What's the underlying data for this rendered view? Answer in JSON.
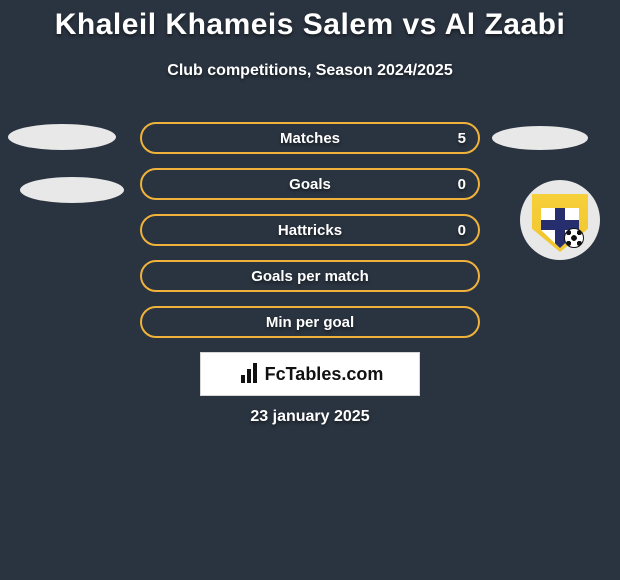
{
  "header": {
    "title": "Khaleil Khameis Salem vs Al Zaabi",
    "subtitle": "Club competitions, Season 2024/2025"
  },
  "stats": {
    "track_border_color": "#f0b23a",
    "background_color": "#2a3440",
    "text_color": "#ffffff",
    "rows": [
      {
        "label": "Matches",
        "right_value": "5"
      },
      {
        "label": "Goals",
        "right_value": "0"
      },
      {
        "label": "Hattricks",
        "right_value": "0"
      },
      {
        "label": "Goals per match",
        "right_value": ""
      },
      {
        "label": "Min per goal",
        "right_value": ""
      }
    ]
  },
  "footer": {
    "brand": "FcTables.com",
    "date": "23 january 2025"
  },
  "club_badge": {
    "shield_color": "#f6d03a",
    "cross_color": "#262e6d",
    "inner_color": "#ffffff"
  }
}
